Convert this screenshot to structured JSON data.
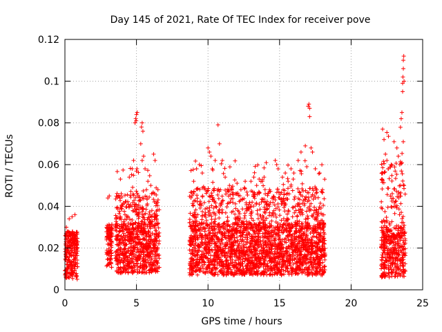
{
  "chart_data": {
    "type": "scatter",
    "title": "Day 145 of 2021, Rate Of TEC Index for receiver pove",
    "xlabel": "GPS time / hours",
    "ylabel": "ROTI / TECUs",
    "xlim": [
      0,
      25
    ],
    "ylim": [
      0,
      0.12
    ],
    "x_ticks": [
      0,
      5,
      10,
      15,
      20,
      25
    ],
    "x_tick_labels": [
      "0",
      "5",
      "10",
      "15",
      "20",
      "25"
    ],
    "y_ticks": [
      0,
      0.02,
      0.04,
      0.06,
      0.08,
      0.1,
      0.12
    ],
    "y_tick_labels": [
      "0",
      "0.02",
      "0.04",
      "0.06",
      "0.08",
      "0.1",
      "0.12"
    ],
    "grid": true,
    "marker": "+",
    "marker_color": "#ff0000",
    "series": [
      {
        "name": "ROTI",
        "clusters": [
          {
            "x_range": [
              0.0,
              0.9
            ],
            "y_typical": [
              0.005,
              0.028
            ],
            "peak": 0.036
          },
          {
            "x_range": [
              2.9,
              3.3
            ],
            "y_typical": [
              0.01,
              0.03
            ],
            "peak": 0.045
          },
          {
            "x_range": [
              3.5,
              6.6
            ],
            "y_typical": [
              0.008,
              0.032
            ],
            "peak": 0.085
          },
          {
            "x_range": [
              8.7,
              18.2
            ],
            "y_typical": [
              0.007,
              0.032
            ],
            "peak": 0.089
          },
          {
            "x_range": [
              22.1,
              23.8
            ],
            "y_typical": [
              0.006,
              0.03
            ],
            "peak": 0.112
          }
        ],
        "points": [
          [
            0.1,
            0.03
          ],
          [
            0.3,
            0.034
          ],
          [
            0.5,
            0.035
          ],
          [
            0.7,
            0.036
          ],
          [
            0.2,
            0.012
          ],
          [
            0.6,
            0.008
          ],
          [
            3.0,
            0.044
          ],
          [
            3.1,
            0.045
          ],
          [
            3.2,
            0.03
          ],
          [
            3.1,
            0.012
          ],
          [
            4.0,
            0.04
          ],
          [
            4.2,
            0.036
          ],
          [
            4.5,
            0.054
          ],
          [
            4.7,
            0.058
          ],
          [
            4.8,
            0.062
          ],
          [
            4.9,
            0.08
          ],
          [
            4.95,
            0.082
          ],
          [
            5.0,
            0.084
          ],
          [
            5.05,
            0.085
          ],
          [
            4.98,
            0.081
          ],
          [
            5.35,
            0.078
          ],
          [
            5.4,
            0.08
          ],
          [
            5.45,
            0.076
          ],
          [
            5.3,
            0.07
          ],
          [
            5.4,
            0.062
          ],
          [
            5.5,
            0.064
          ],
          [
            5.6,
            0.058
          ],
          [
            5.8,
            0.052
          ],
          [
            6.2,
            0.065
          ],
          [
            6.3,
            0.062
          ],
          [
            6.5,
            0.048
          ],
          [
            6.0,
            0.05
          ],
          [
            9.0,
            0.052
          ],
          [
            9.2,
            0.058
          ],
          [
            9.4,
            0.06
          ],
          [
            9.6,
            0.056
          ],
          [
            9.8,
            0.048
          ],
          [
            10.0,
            0.068
          ],
          [
            10.1,
            0.066
          ],
          [
            10.2,
            0.064
          ],
          [
            10.3,
            0.058
          ],
          [
            10.5,
            0.062
          ],
          [
            10.7,
            0.079
          ],
          [
            10.8,
            0.07
          ],
          [
            11.0,
            0.062
          ],
          [
            11.2,
            0.054
          ],
          [
            11.5,
            0.05
          ],
          [
            12.0,
            0.046
          ],
          [
            12.3,
            0.048
          ],
          [
            12.6,
            0.052
          ],
          [
            13.0,
            0.052
          ],
          [
            13.2,
            0.054
          ],
          [
            13.4,
            0.05
          ],
          [
            13.8,
            0.052
          ],
          [
            14.0,
            0.046
          ],
          [
            14.3,
            0.048
          ],
          [
            14.7,
            0.062
          ],
          [
            14.8,
            0.06
          ],
          [
            14.9,
            0.058
          ],
          [
            15.2,
            0.054
          ],
          [
            15.4,
            0.056
          ],
          [
            15.6,
            0.052
          ],
          [
            15.8,
            0.058
          ],
          [
            16.0,
            0.056
          ],
          [
            16.3,
            0.062
          ],
          [
            16.5,
            0.066
          ],
          [
            16.8,
            0.069
          ],
          [
            17.0,
            0.088
          ],
          [
            17.05,
            0.089
          ],
          [
            17.1,
            0.087
          ],
          [
            17.1,
            0.083
          ],
          [
            17.2,
            0.068
          ],
          [
            17.3,
            0.066
          ],
          [
            17.5,
            0.058
          ],
          [
            17.8,
            0.056
          ],
          [
            18.0,
            0.048
          ],
          [
            22.2,
            0.077
          ],
          [
            22.3,
            0.072
          ],
          [
            22.4,
            0.065
          ],
          [
            22.5,
            0.062
          ],
          [
            22.6,
            0.058
          ],
          [
            22.8,
            0.06
          ],
          [
            23.0,
            0.071
          ],
          [
            23.2,
            0.068
          ],
          [
            23.3,
            0.064
          ],
          [
            23.4,
            0.06
          ],
          [
            23.5,
            0.082
          ],
          [
            23.55,
            0.085
          ],
          [
            23.6,
            0.095
          ],
          [
            23.6,
            0.099
          ],
          [
            23.62,
            0.102
          ],
          [
            23.65,
            0.106
          ],
          [
            23.65,
            0.11
          ],
          [
            23.68,
            0.112
          ],
          [
            23.7,
            0.1
          ],
          [
            23.7,
            0.05
          ]
        ]
      }
    ]
  }
}
